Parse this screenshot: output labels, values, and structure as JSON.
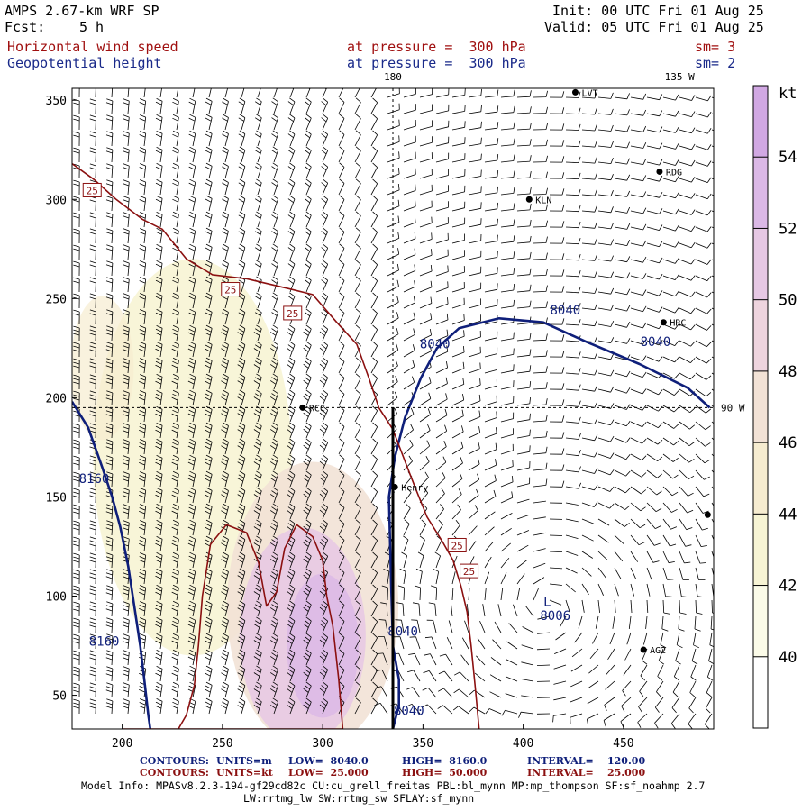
{
  "header": {
    "model": "AMPS 2.67-km WRF SP",
    "fcst_label": "Fcst:",
    "fcst_value": "5 h",
    "init": "Init: 00 UTC Fri 01 Aug 25",
    "valid": "Valid: 05 UTC Fri 01 Aug 25",
    "field1_name": "Horizontal wind speed",
    "field1_level": "at pressure =  300 hPa",
    "field1_sm": "sm= 3",
    "field2_name": "Geopotential height",
    "field2_level": "at pressure =  300 hPa",
    "field2_sm": "sm= 2"
  },
  "colors": {
    "contour_height": "#0f1f7a",
    "contour_speed": "#8b1010",
    "barb": "#000000",
    "text_red": "#a01010",
    "text_blue": "#1a2a8a"
  },
  "chart_data": {
    "type": "heatmap",
    "title": "Horizontal wind speed / Geopotential height at 300 hPa",
    "xlim": [
      175,
      495
    ],
    "ylim": [
      33,
      356
    ],
    "x_ticks": [
      200,
      250,
      300,
      350,
      400,
      450
    ],
    "y_ticks": [
      50,
      100,
      150,
      200,
      250,
      300,
      350
    ],
    "colorbar": {
      "unit": "kt",
      "range": [
        38,
        56
      ],
      "tick_values": [
        40,
        42,
        44,
        46,
        48,
        50,
        52,
        54
      ],
      "colors": [
        {
          "from": 38,
          "to": 40,
          "color": "#ffffff"
        },
        {
          "from": 40,
          "to": 42,
          "color": "#fbfbe8"
        },
        {
          "from": 42,
          "to": 44,
          "color": "#f7f4d4"
        },
        {
          "from": 44,
          "to": 46,
          "color": "#f6ecd0"
        },
        {
          "from": 46,
          "to": 48,
          "color": "#f2e2d6"
        },
        {
          "from": 48,
          "to": 50,
          "color": "#eed4de"
        },
        {
          "from": 50,
          "to": 52,
          "color": "#e6c8e4"
        },
        {
          "from": 52,
          "to": 54,
          "color": "#dbb8e6"
        },
        {
          "from": 54,
          "to": 56,
          "color": "#d1a8e3"
        }
      ]
    },
    "meridian_labels": [
      {
        "text": "180",
        "x": 335,
        "side": "top"
      },
      {
        "text": "135 W",
        "x": 478,
        "side": "top"
      },
      {
        "text": "90 W",
        "y": 195,
        "side": "right"
      }
    ],
    "stations": [
      {
        "name": "LVT",
        "x": 426,
        "y": 354
      },
      {
        "name": "RDG",
        "x": 468,
        "y": 314
      },
      {
        "name": "KLN",
        "x": 403,
        "y": 300
      },
      {
        "name": "HRC",
        "x": 470,
        "y": 238
      },
      {
        "name": "RCC",
        "x": 290,
        "y": 195
      },
      {
        "name": "Henry",
        "x": 336,
        "y": 155
      },
      {
        "name": "AG2",
        "x": 460,
        "y": 73
      },
      {
        "name": "",
        "x": 492,
        "y": 141
      }
    ],
    "height_contours": [
      {
        "label": "8040",
        "value": 8040,
        "points": [
          [
            335,
            33
          ],
          [
            338,
            45
          ],
          [
            338,
            58
          ],
          [
            335,
            75
          ],
          [
            334,
            110
          ],
          [
            333,
            150
          ],
          [
            336,
            170
          ],
          [
            341,
            190
          ],
          [
            349,
            210
          ],
          [
            357,
            225
          ],
          [
            368,
            235
          ],
          [
            388,
            240
          ],
          [
            410,
            238
          ],
          [
            432,
            228
          ],
          [
            458,
            217
          ],
          [
            482,
            205
          ],
          [
            493,
            195
          ]
        ]
      },
      {
        "label": "8160",
        "value": 8160,
        "points": [
          [
            175,
            198
          ],
          [
            183,
            185
          ],
          [
            190,
            165
          ],
          [
            195,
            150
          ],
          [
            199,
            135
          ],
          [
            203,
            115
          ],
          [
            206,
            95
          ],
          [
            209,
            75
          ],
          [
            211,
            58
          ],
          [
            213,
            40
          ],
          [
            214,
            33
          ]
        ]
      }
    ],
    "height_labels": [
      {
        "text": "8040",
        "x": 421,
        "y": 242
      },
      {
        "text": "8040",
        "x": 356,
        "y": 225
      },
      {
        "text": "8040",
        "x": 466,
        "y": 226
      },
      {
        "text": "8040",
        "x": 340,
        "y": 80
      },
      {
        "text": "8040",
        "x": 343,
        "y": 40
      },
      {
        "text": "8160",
        "x": 186,
        "y": 157
      },
      {
        "text": "8160",
        "x": 191,
        "y": 75
      },
      {
        "text": "8006",
        "x": 416,
        "y": 88
      }
    ],
    "low_marks": [
      {
        "text": "L",
        "x": 412,
        "y": 95
      }
    ],
    "speed_contours": [
      {
        "label": "25",
        "value": 25,
        "points": [
          [
            175,
            318
          ],
          [
            186,
            310
          ],
          [
            197,
            300
          ],
          [
            210,
            290
          ],
          [
            220,
            285
          ],
          [
            232,
            270
          ],
          [
            245,
            262
          ],
          [
            262,
            260
          ],
          [
            283,
            255
          ],
          [
            295,
            252
          ],
          [
            307,
            238
          ],
          [
            317,
            227
          ],
          [
            323,
            210
          ],
          [
            328,
            195
          ],
          [
            335,
            184
          ],
          [
            341,
            168
          ],
          [
            346,
            155
          ],
          [
            352,
            140
          ],
          [
            360,
            127
          ],
          [
            365,
            118
          ],
          [
            369,
            105
          ],
          [
            372,
            92
          ],
          [
            374,
            75
          ],
          [
            376,
            55
          ],
          [
            378,
            33
          ]
        ]
      },
      {
        "label": "",
        "value": 25,
        "points": [
          [
            200,
            33
          ],
          [
            216,
            33
          ],
          [
            232,
            33
          ],
          [
            248,
            33
          ],
          [
            262,
            33
          ],
          [
            278,
            33
          ],
          [
            292,
            33
          ],
          [
            300,
            33
          ],
          [
            310,
            33
          ],
          [
            308,
            58
          ],
          [
            305,
            85
          ],
          [
            302,
            100
          ],
          [
            300,
            118
          ],
          [
            295,
            130
          ],
          [
            287,
            136
          ],
          [
            281,
            124
          ],
          [
            277,
            102
          ],
          [
            272,
            95
          ],
          [
            268,
            117
          ],
          [
            262,
            132
          ],
          [
            252,
            136
          ],
          [
            244,
            126
          ],
          [
            240,
            100
          ],
          [
            238,
            75
          ],
          [
            236,
            55
          ],
          [
            232,
            40
          ],
          [
            228,
            33
          ]
        ]
      }
    ],
    "speed_labels": [
      {
        "text": "25",
        "x": 185,
        "y": 304
      },
      {
        "text": "25",
        "x": 254,
        "y": 254
      },
      {
        "text": "25",
        "x": 285,
        "y": 242
      },
      {
        "text": "25",
        "x": 367,
        "y": 125
      },
      {
        "text": "25",
        "x": 373,
        "y": 112
      }
    ],
    "wind_barb_regions": "barbs drawn over whole domain; stronger (feathered) west of ~340, weak cyclonic circulation around low near (412,95)"
  },
  "footer": {
    "contours1_label": "CONTOURS:",
    "contours1_units": "UNITS=m",
    "contours1_low": "LOW=  8040.0",
    "contours1_high": "HIGH=  8160.0",
    "contours1_interval": "INTERVAL=    120.00",
    "contours2_label": "CONTOURS:",
    "contours2_units": "UNITS=kt",
    "contours2_low": "LOW=  25.000",
    "contours2_high": "HIGH=  50.000",
    "contours2_interval": "INTERVAL=    25.000",
    "model_info": "Model Info: MPASv8.2.3-194-gf29cd82c CU:cu_grell_freitas PBL:bl_mynn MP:mp_thompson SF:sf_noahmp 2.7",
    "model_info2": "LW:rrtmg_lw SW:rrtmg_sw SFLAY:sf_mynn"
  }
}
